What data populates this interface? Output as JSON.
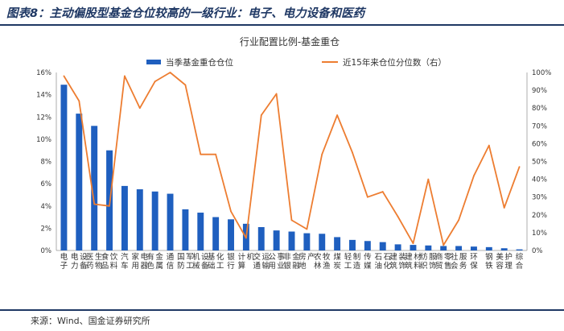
{
  "figure_title": "图表8：主动偏股型基金仓位较高的一级行业：电子、电力设备和医药",
  "source": "来源：Wind、国金证券研究所",
  "chart_data": {
    "type": "bar+line",
    "title": "行业配置比例-基金重仓",
    "legend": [
      {
        "name": "当季基金重仓仓位",
        "color": "#1f5fbf",
        "kind": "bar"
      },
      {
        "name": "近15年来仓位分位数（右）",
        "color": "#ed7d31",
        "kind": "line"
      }
    ],
    "legend_position": "top",
    "grid": false,
    "categories": [
      "电子",
      "电力设备",
      "医药生物",
      "食品饮料",
      "汽车",
      "家用电器",
      "有色金属",
      "通信",
      "国防军工",
      "机械设备",
      "基础化工",
      "银行",
      "计算机",
      "交通运输",
      "公用事业",
      "非银金融",
      "房地产",
      "农林牧渔",
      "煤炭",
      "轻工制造",
      "传媒",
      "石油石化",
      "建筑装饰",
      "建筑材料",
      "纺织服饰",
      "商贸零售",
      "社会服务",
      "环保",
      "钢铁",
      "美容护理",
      "综合"
    ],
    "y_left": {
      "min": 0,
      "max": 16,
      "step": 2,
      "unit": "%",
      "ticks": [
        "0%",
        "2%",
        "4%",
        "6%",
        "8%",
        "10%",
        "12%",
        "14%",
        "16%"
      ]
    },
    "y_right": {
      "min": 0,
      "max": 100,
      "step": 10,
      "unit": "%",
      "ticks": [
        "0%",
        "10%",
        "20%",
        "30%",
        "40%",
        "50%",
        "60%",
        "70%",
        "80%",
        "90%",
        "100%"
      ]
    },
    "series": [
      {
        "name": "当季基金重仓仓位",
        "axis": "left",
        "color": "#1f5fbf",
        "values": [
          14.9,
          12.3,
          11.2,
          9.0,
          5.8,
          5.5,
          5.3,
          5.1,
          3.7,
          3.4,
          3.0,
          2.8,
          2.4,
          2.1,
          1.8,
          1.7,
          1.55,
          1.5,
          1.2,
          0.95,
          0.85,
          0.75,
          0.55,
          0.5,
          0.45,
          0.4,
          0.4,
          0.35,
          0.3,
          0.2,
          0.1
        ]
      },
      {
        "name": "近15年来仓位分位数（右）",
        "axis": "right",
        "color": "#ed7d31",
        "values": [
          98,
          84,
          26,
          25,
          98,
          80,
          95,
          100,
          93,
          54,
          54,
          22,
          7,
          76,
          88,
          17,
          12,
          54,
          76,
          55,
          30,
          33,
          19,
          4,
          40,
          3,
          17,
          42,
          59,
          24,
          47
        ]
      }
    ]
  }
}
